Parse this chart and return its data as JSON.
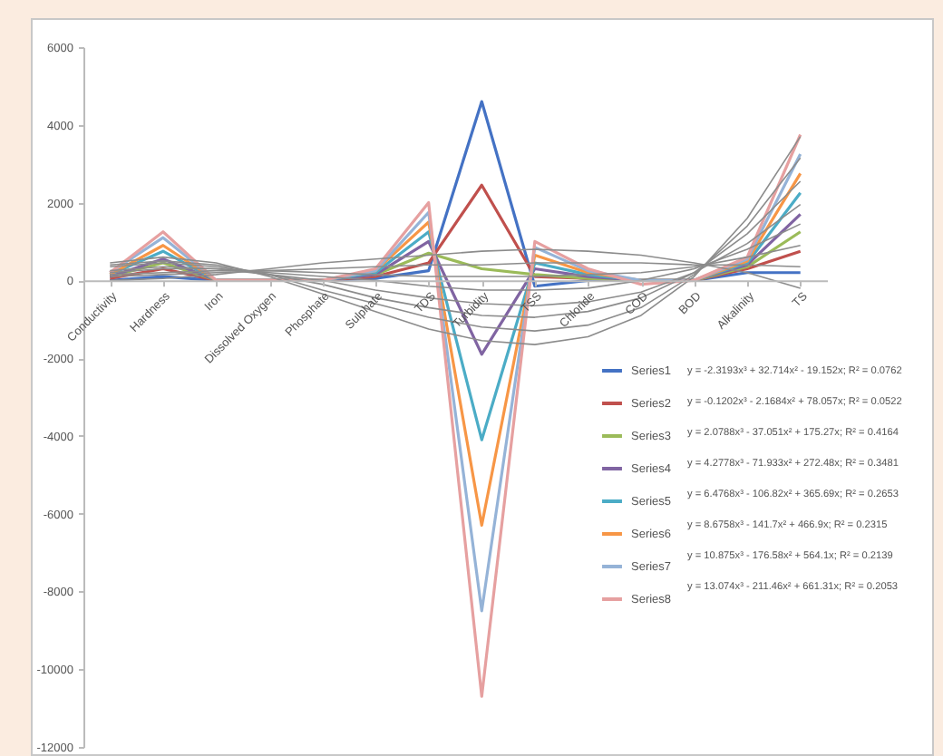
{
  "chart_data": {
    "type": "line",
    "categories": [
      "Conductivity",
      "Hardness",
      "Iron",
      "Dissolved Oxygen",
      "Phosphate",
      "Sulphate",
      "TDS",
      "Turbidity",
      "TSS",
      "Chloride",
      "COD",
      "BOD",
      "Alkalinity",
      "TS"
    ],
    "ylim": [
      -12000,
      6000
    ],
    "yticks": [
      -12000,
      -10000,
      -8000,
      -6000,
      -4000,
      -2000,
      0,
      2000,
      4000,
      6000
    ],
    "grid": false,
    "legend": "bottom right",
    "series": [
      {
        "name": "Series1",
        "color": "#4472c4",
        "values": [
          0,
          100,
          0,
          0,
          0,
          50,
          250,
          4600,
          -150,
          0,
          0,
          0,
          200,
          200
        ]
      },
      {
        "name": "Series2",
        "color": "#c0504d",
        "values": [
          50,
          300,
          0,
          0,
          0,
          100,
          450,
          2450,
          100,
          50,
          0,
          0,
          300,
          750
        ]
      },
      {
        "name": "Series3",
        "color": "#9bbb59",
        "values": [
          100,
          450,
          0,
          0,
          0,
          150,
          700,
          300,
          150,
          50,
          0,
          0,
          350,
          1250
        ]
      },
      {
        "name": "Series4",
        "color": "#8064a2",
        "values": [
          100,
          550,
          0,
          0,
          0,
          150,
          1000,
          -1900,
          300,
          100,
          0,
          0,
          400,
          1700
        ]
      },
      {
        "name": "Series5",
        "color": "#4bacc6",
        "values": [
          150,
          750,
          0,
          0,
          0,
          200,
          1250,
          -4100,
          450,
          150,
          0,
          0,
          450,
          2250
        ]
      },
      {
        "name": "Series6",
        "color": "#f79646",
        "values": [
          150,
          900,
          0,
          0,
          0,
          250,
          1500,
          -6300,
          650,
          200,
          0,
          0,
          500,
          2750
        ]
      },
      {
        "name": "Series7",
        "color": "#95b3d7",
        "values": [
          200,
          1100,
          0,
          0,
          0,
          250,
          1750,
          -8500,
          850,
          250,
          0,
          0,
          550,
          3250
        ]
      },
      {
        "name": "Series8",
        "color": "#e6a0a0",
        "values": [
          200,
          1250,
          0,
          0,
          0,
          300,
          2000,
          -10700,
          1000,
          300,
          -100,
          0,
          600,
          3750
        ]
      },
      {
        "color": "#8c8c8c",
        "values": [
          0,
          50,
          150,
          300,
          450,
          550,
          650,
          750,
          800,
          750,
          650,
          450,
          200,
          -200
        ]
      },
      {
        "color": "#8c8c8c",
        "values": [
          100,
          150,
          200,
          250,
          300,
          350,
          400,
          400,
          450,
          450,
          450,
          400,
          400,
          350
        ]
      },
      {
        "color": "#8c8c8c",
        "values": [
          150,
          200,
          250,
          250,
          200,
          150,
          100,
          100,
          100,
          150,
          200,
          350,
          600,
          900
        ]
      },
      {
        "color": "#8c8c8c",
        "values": [
          200,
          300,
          300,
          200,
          100,
          0,
          -150,
          -250,
          -250,
          -200,
          0,
          300,
          800,
          1450
        ]
      },
      {
        "color": "#8c8c8c",
        "values": [
          250,
          350,
          300,
          150,
          0,
          -250,
          -450,
          -600,
          -650,
          -550,
          -300,
          200,
          950,
          1950
        ]
      },
      {
        "color": "#8c8c8c",
        "values": [
          350,
          450,
          350,
          150,
          -100,
          -450,
          -700,
          -900,
          -950,
          -800,
          -450,
          200,
          1200,
          2550
        ]
      },
      {
        "color": "#8c8c8c",
        "values": [
          400,
          500,
          400,
          150,
          -250,
          -600,
          -950,
          -1200,
          -1300,
          -1150,
          -700,
          150,
          1400,
          3150
        ]
      },
      {
        "color": "#8c8c8c",
        "values": [
          450,
          600,
          450,
          100,
          -350,
          -800,
          -1250,
          -1550,
          -1650,
          -1450,
          -900,
          100,
          1600,
          3700
        ]
      }
    ],
    "annotations": [
      "y = -2.3193x³ + 32.714x² - 19.152x;  R² = 0.0762",
      "y = -0.1202x³ - 2.1684x² + 78.057x;  R² = 0.0522",
      "y = 2.0788x³ - 37.051x² + 175.27x;  R² = 0.4164",
      "y = 4.2778x³ - 71.933x² + 272.48x; R² = 0.3481",
      "y = 6.4768x³ - 106.82x² + 365.69x;  R² = 0.2653",
      "y = 8.6758x³ - 141.7x² + 466.9x;  R² = 0.2315",
      "y = 10.875x³ - 176.58x² + 564.1x;  R² = 0.2139",
      "y = 13.074x³ - 211.46x² + 661.31x;  R² = 0.2053"
    ]
  }
}
